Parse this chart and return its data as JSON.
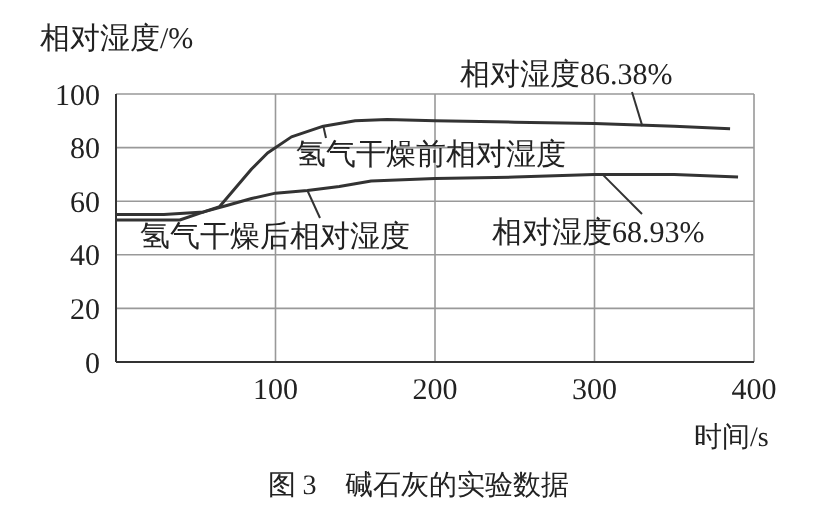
{
  "chart_data": {
    "type": "line",
    "title": "图 3　碱石灰的实验数据",
    "xlabel": "时间/s",
    "ylabel": "相对湿度/%",
    "xlim": [
      0,
      400
    ],
    "xticks": [
      {
        "value": 0,
        "label": null
      },
      100,
      200,
      300,
      400
    ],
    "ylim": [
      0,
      100
    ],
    "yticks": [
      0,
      20,
      40,
      60,
      80,
      100
    ],
    "grid": true,
    "legend": "left",
    "marker": "none",
    "line_style": "solid",
    "series": [
      {
        "name": "氢气干燥前相对湿度",
        "color": "#333333",
        "x": [
          0,
          30,
          55,
          65,
          75,
          85,
          95,
          110,
          130,
          150,
          170,
          200,
          250,
          300,
          350,
          385
        ],
        "values": [
          55,
          55,
          56,
          58,
          65,
          72,
          78,
          84,
          88,
          90,
          90.5,
          90,
          89.5,
          89,
          88,
          87
        ]
      },
      {
        "name": "氢气干燥后相对湿度",
        "color": "#333333",
        "x": [
          0,
          40,
          55,
          70,
          85,
          100,
          120,
          140,
          160,
          200,
          250,
          300,
          350,
          390
        ],
        "values": [
          53,
          53,
          56,
          58.5,
          61,
          63,
          64,
          65.5,
          67.5,
          68.5,
          69,
          70,
          70,
          69
        ]
      }
    ],
    "annotations": [
      {
        "text": "相对湿度86.38%",
        "x": 330,
        "y": 88
      },
      {
        "text": "相对湿度68.93%",
        "x": 305,
        "y": 70
      }
    ]
  }
}
